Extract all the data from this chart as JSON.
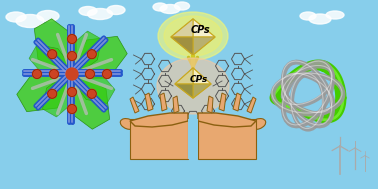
{
  "bg_sky": "#87CEEB",
  "hand_color": "#E8A870",
  "hand_outline": "#8B6010",
  "diamond_yellow_bg": "#F5F070",
  "diamond_face_light": "#F0EAB0",
  "diamond_face_mid": "#D4C840",
  "diamond_face_dark": "#A09020",
  "diamond_edge": "#C8A820",
  "arrow_color": "#C8C040",
  "cp_label": "CPs",
  "peach_color": "#F5C8A0",
  "mol_line_color": "#555555",
  "left_green": "#44CC22",
  "left_blue": "#2255CC",
  "left_red": "#CC4422",
  "left_gray": "#AAAAAA",
  "right_gray": "#999999",
  "right_green": "#44CC00",
  "wind_color": "#AAAAAA"
}
